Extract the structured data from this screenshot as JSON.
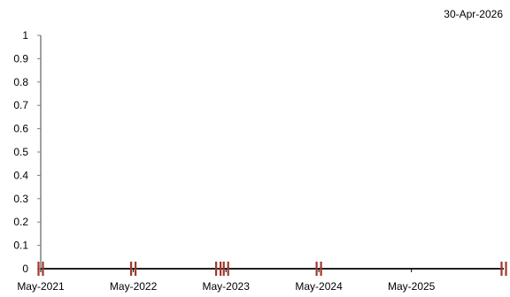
{
  "header": {
    "date": "30-Apr-2026"
  },
  "chart_data": {
    "type": "line",
    "title": "",
    "xlabel": "",
    "ylabel": "",
    "ylim": [
      0,
      1
    ],
    "y_ticks": [
      "0",
      "0.1",
      "0.2",
      "0.3",
      "0.4",
      "0.5",
      "0.6",
      "0.7",
      "0.8",
      "0.9",
      "1"
    ],
    "xlim": [
      "2021-05-01",
      "2026-04-30"
    ],
    "x_ticks": [
      {
        "label": "May-2021",
        "date": "2021-05-01"
      },
      {
        "label": "May-2022",
        "date": "2022-05-01"
      },
      {
        "label": "May-2023",
        "date": "2023-05-01"
      },
      {
        "label": "May-2024",
        "date": "2024-05-01"
      },
      {
        "label": "May-2025",
        "date": "2025-05-01"
      }
    ],
    "break_markers": [
      "2021-05-01",
      "2022-05-01",
      "2023-04-01",
      "2023-05-01",
      "2024-05-01",
      "2026-04-30"
    ],
    "series": [],
    "marker_color": "#a0382c",
    "axis_color": "#808080",
    "grid": false
  }
}
